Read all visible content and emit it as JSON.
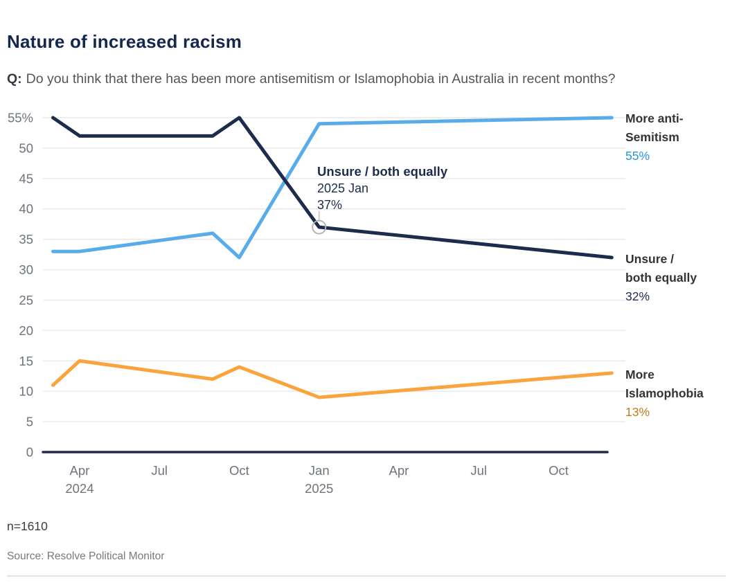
{
  "header": {
    "title": "Nature of increased racism",
    "question_prefix": "Q:",
    "question_text": "Do you think that there has been more antisemitism or Islamophobia in Australia in recent months?"
  },
  "chart_data": {
    "type": "line",
    "title": "Nature of increased racism",
    "xlabel": "",
    "ylabel": "",
    "ylim": [
      0,
      55
    ],
    "grid": true,
    "x_unit": "months since 2024 Mar (tick spacing = 3 months)",
    "y_ticks": [
      0,
      5,
      10,
      15,
      20,
      25,
      30,
      35,
      40,
      45,
      50,
      55
    ],
    "y_top_label": "55%",
    "x_ticks": [
      {
        "m": 1,
        "label": "Apr",
        "sub": "2024"
      },
      {
        "m": 4,
        "label": "Jul"
      },
      {
        "m": 7,
        "label": "Oct"
      },
      {
        "m": 10,
        "label": "Jan",
        "sub": "2025"
      },
      {
        "m": 13,
        "label": "Apr"
      },
      {
        "m": 16,
        "label": "Jul"
      },
      {
        "m": 19,
        "label": "Oct"
      }
    ],
    "series": [
      {
        "id": "antisemitism",
        "name": "More anti-Semitism",
        "color": "#58ace9",
        "points": [
          {
            "m": 0,
            "x_label": "2024 Mar",
            "v": 33
          },
          {
            "m": 1,
            "x_label": "2024 Apr",
            "v": 33
          },
          {
            "m": 6,
            "x_label": "2024 Sep",
            "v": 36
          },
          {
            "m": 7,
            "x_label": "2024 Oct",
            "v": 32
          },
          {
            "m": 10,
            "x_label": "2025 Jan",
            "v": 54
          },
          {
            "m": 21,
            "x_label": "2025 Dec",
            "v": 55
          }
        ],
        "end_label": {
          "line1": "More anti-",
          "line2": "Semitism",
          "value": "55%",
          "value_color": "#2596dd"
        }
      },
      {
        "id": "unsure",
        "name": "Unsure / both equally",
        "color": "#1d2b4d",
        "points": [
          {
            "m": 0,
            "x_label": "2024 Mar",
            "v": 55
          },
          {
            "m": 1,
            "x_label": "2024 Apr",
            "v": 52
          },
          {
            "m": 6,
            "x_label": "2024 Sep",
            "v": 52
          },
          {
            "m": 7,
            "x_label": "2024 Oct",
            "v": 55
          },
          {
            "m": 10,
            "x_label": "2025 Jan",
            "v": 37
          },
          {
            "m": 21,
            "x_label": "2025 Dec",
            "v": 32
          }
        ],
        "end_label": {
          "line1": "Unsure /",
          "line2": "both equally",
          "value": "32%",
          "value_color": "#1d2b4d"
        }
      },
      {
        "id": "islamophobia",
        "name": "More Islamophobia",
        "color": "#faa43d",
        "points": [
          {
            "m": 0,
            "x_label": "2024 Mar",
            "v": 11
          },
          {
            "m": 1,
            "x_label": "2024 Apr",
            "v": 15
          },
          {
            "m": 6,
            "x_label": "2024 Sep",
            "v": 12
          },
          {
            "m": 7,
            "x_label": "2024 Oct",
            "v": 14
          },
          {
            "m": 10,
            "x_label": "2025 Jan",
            "v": 9
          },
          {
            "m": 21,
            "x_label": "2025 Dec",
            "v": 13
          }
        ],
        "end_label": {
          "line1": "More",
          "line2": "Islamophobia",
          "value": "13%",
          "value_color": "#c67b14"
        }
      }
    ],
    "draw_order": [
      0,
      2,
      1
    ],
    "annotation": {
      "title": "Unsure / both equally",
      "date": "2025 Jan",
      "value": "37%",
      "marker": {
        "m": 10,
        "v": 37
      }
    },
    "style": {
      "grid_color": "#e9e9e9",
      "tick_color": "#6e737c",
      "axis_color": "#1d2b4d",
      "marker_stroke": "#b4b4b4",
      "connector_stroke": "#c2c2c2"
    },
    "legend_position": "right-of-line-ends"
  },
  "footer": {
    "sample": "n=1610",
    "source": "Source: Resolve Political Monitor"
  }
}
